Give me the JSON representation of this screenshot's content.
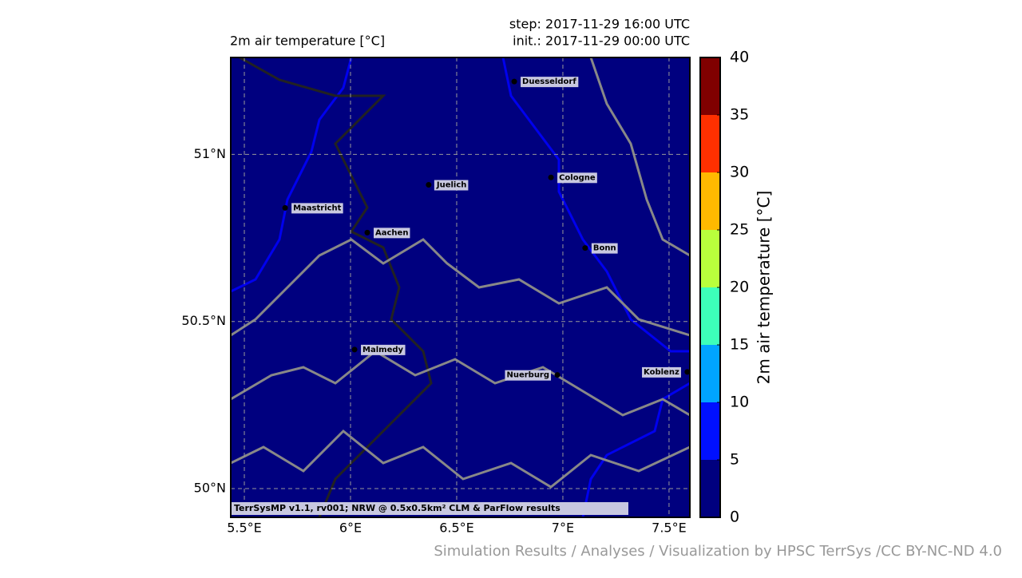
{
  "title": "2m air temperature [°C]",
  "step": "step: 2017-11-29 16:00 UTC",
  "init": "init.: 2017-11-29 00:00 UTC",
  "map": {
    "lonlim": [
      5.436,
      7.598
    ],
    "latlim": [
      49.914,
      51.29
    ],
    "lonticks": [
      {
        "value": 5.5,
        "label": "5.5°E"
      },
      {
        "value": 6,
        "label": "6°E"
      },
      {
        "value": 6.5,
        "label": "6.5°E"
      },
      {
        "value": 7,
        "label": "7°E"
      },
      {
        "value": 7.5,
        "label": "7.5°E"
      }
    ],
    "latticks": [
      {
        "value": 51,
        "label": "51°N"
      },
      {
        "value": 50.5,
        "label": "50.5°N"
      },
      {
        "value": 50,
        "label": "50°N"
      }
    ],
    "fill": "#00007f",
    "cities": [
      {
        "name": "Duesseldorf",
        "lon": 6.771,
        "lat": 51.218
      },
      {
        "name": "Cologne",
        "lon": 6.944,
        "lat": 50.931
      },
      {
        "name": "Juelich",
        "lon": 6.368,
        "lat": 50.909
      },
      {
        "name": "Maastricht",
        "lon": 5.692,
        "lat": 50.84
      },
      {
        "name": "Aachen",
        "lon": 6.079,
        "lat": 50.766
      },
      {
        "name": "Bonn",
        "lon": 7.105,
        "lat": 50.72
      },
      {
        "name": "Malmedy",
        "lon": 6.019,
        "lat": 50.416
      },
      {
        "name": "Nuerburg",
        "lon": 6.974,
        "lat": 50.34
      },
      {
        "name": "Koblenz",
        "lon": 7.586,
        "lat": 50.349
      }
    ],
    "credit": "TerrSysMP v1.1, rv001; NRW @ 0.5x0.5km² CLM & ParFlow results"
  },
  "colorbar": {
    "label": "2m air temperature [°C]",
    "lim": [
      0,
      40
    ],
    "ticks": [
      0,
      5,
      10,
      15,
      20,
      25,
      30,
      35,
      40
    ],
    "colors": [
      "#00007f",
      "#0010ff",
      "#00a4ff",
      "#3dffb9",
      "#b9ff3c",
      "#ffb900",
      "#ff3000",
      "#800000"
    ]
  },
  "footer": "Simulation Results / Analyses / Visualization by HPSC TerrSys /CC BY-NC-ND 4.0"
}
